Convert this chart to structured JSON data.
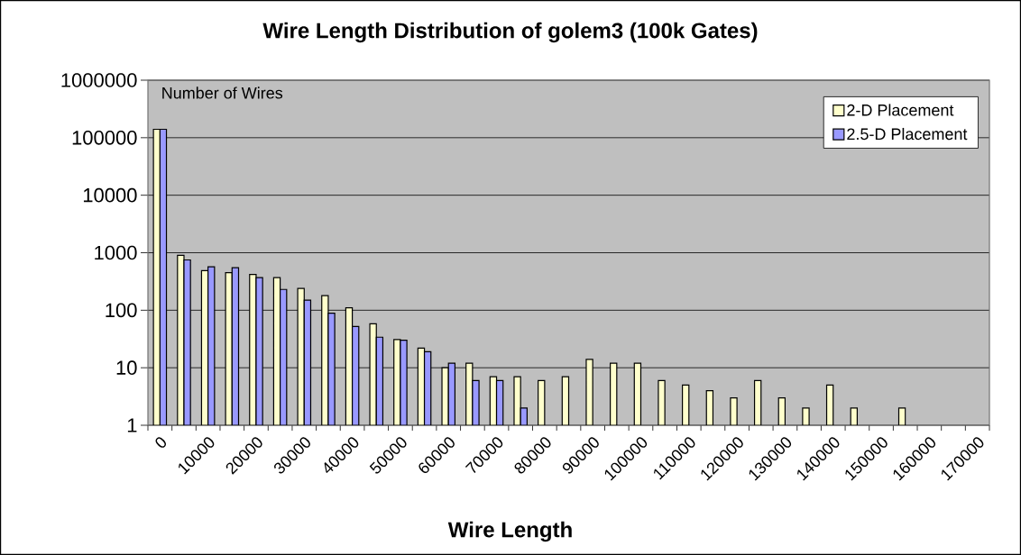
{
  "chart_data": {
    "type": "bar",
    "title": "Wire Length Distribution of golem3 (100k Gates)",
    "xlabel": "Wire Length",
    "ylabel": "Number of Wires",
    "categories": [
      "0",
      null,
      "10000",
      null,
      "20000",
      null,
      "30000",
      null,
      "40000",
      null,
      "50000",
      null,
      "60000",
      null,
      "70000",
      null,
      "80000",
      null,
      "90000",
      null,
      "100000",
      null,
      "110000",
      null,
      "120000",
      null,
      "130000",
      null,
      "140000",
      null,
      "150000",
      null,
      "160000",
      null,
      "170000"
    ],
    "series": [
      {
        "name": "2-D Placement",
        "color": "#ffffcc",
        "values": [
          140000,
          900,
          490,
          450,
          420,
          370,
          240,
          180,
          110,
          58,
          31,
          22,
          10,
          12,
          7,
          7,
          6,
          7,
          14,
          12,
          12,
          6,
          5,
          4,
          3,
          6,
          3,
          2,
          5,
          2,
          null,
          2,
          null,
          null,
          null
        ]
      },
      {
        "name": "2.5-D Placement",
        "color": "#9999ff",
        "values": [
          140000,
          750,
          570,
          550,
          370,
          230,
          150,
          89,
          52,
          34,
          30,
          19,
          12,
          6,
          6,
          2,
          null,
          null,
          null,
          null,
          null,
          null,
          null,
          null,
          null,
          null,
          null,
          null,
          null,
          null,
          null,
          null,
          null,
          null,
          null
        ]
      }
    ],
    "log": "y",
    "ylim": [
      1,
      1000000
    ],
    "yticks": [
      1,
      10,
      100,
      1000,
      10000,
      100000,
      1000000
    ],
    "grid": "y",
    "legend": "top right"
  }
}
